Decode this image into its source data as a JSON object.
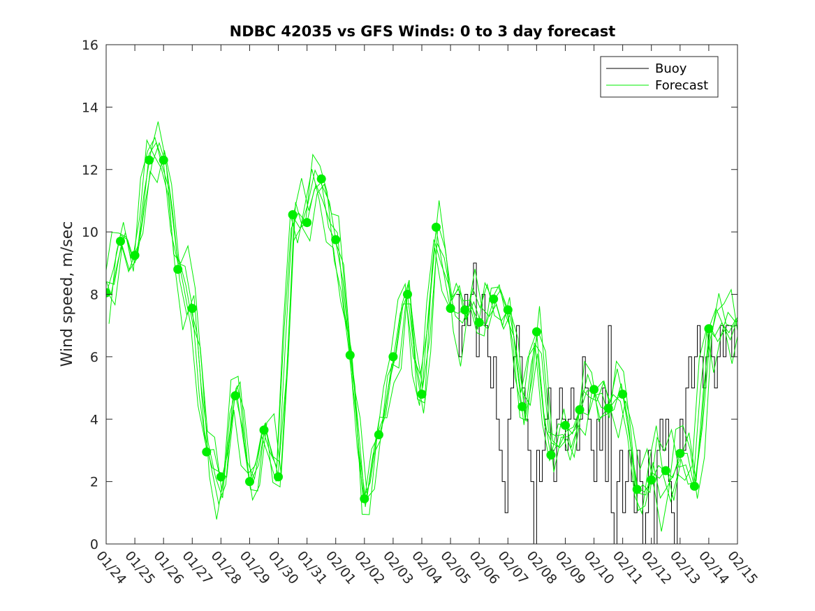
{
  "chart_data": {
    "type": "line",
    "title": "NDBC 42035 vs GFS Winds: 0 to 3 day forecast",
    "xlabel": "",
    "ylabel": "Wind speed, m/sec",
    "xlim": [
      "01/24",
      "02/15"
    ],
    "ylim": [
      0,
      16
    ],
    "y_ticks": [
      0,
      2,
      4,
      6,
      8,
      10,
      12,
      14,
      16
    ],
    "x_ticks": [
      "01/24",
      "01/25",
      "01/26",
      "01/27",
      "01/28",
      "01/29",
      "01/30",
      "01/31",
      "02/01",
      "02/02",
      "02/03",
      "02/04",
      "02/05",
      "02/06",
      "02/07",
      "02/08",
      "02/09",
      "02/10",
      "02/11",
      "02/12",
      "02/13",
      "02/14",
      "02/15"
    ],
    "grid": false,
    "legend": {
      "placement": "top-right",
      "entries": [
        "Buoy",
        "Forecast"
      ]
    },
    "colors": {
      "buoy": "#000000",
      "forecast": "#00ee00"
    },
    "series": [
      {
        "name": "Buoy",
        "note_days": "x in days after 01/24 00:00",
        "x": [
          12.2,
          12.3,
          12.4,
          12.5,
          12.6,
          12.7,
          12.8,
          12.9,
          13.0,
          13.1,
          13.2,
          13.3,
          13.4,
          13.5,
          13.6,
          13.7,
          13.8,
          13.9,
          14.0,
          14.1,
          14.2,
          14.3,
          14.4,
          14.5,
          14.6,
          14.7,
          14.8,
          14.9,
          15.0,
          15.1,
          15.2,
          15.3,
          15.4,
          15.5,
          15.6,
          15.7,
          15.8,
          15.9,
          16.0,
          16.1,
          16.2,
          16.3,
          16.4,
          16.5,
          16.6,
          16.7,
          16.8,
          16.9,
          17.0,
          17.1,
          17.2,
          17.3,
          17.4,
          17.5,
          17.6,
          17.7,
          17.8,
          17.9,
          18.0,
          18.1,
          18.2,
          18.3,
          18.4,
          18.5,
          18.6,
          18.7,
          18.8,
          18.9,
          19.0,
          19.1,
          19.2,
          19.3,
          19.4,
          19.5,
          19.6,
          19.7,
          19.8,
          19.9,
          20.0,
          20.1,
          20.2,
          20.3,
          20.4,
          20.5,
          20.6,
          20.7,
          20.8,
          20.9,
          21.0,
          21.1,
          21.2,
          21.3,
          21.4,
          21.5,
          21.6,
          21.7,
          21.8,
          21.9,
          22.0
        ],
        "y": [
          8,
          6,
          7,
          8,
          7,
          8,
          9,
          6,
          7,
          8,
          7,
          6,
          5,
          6,
          4,
          3,
          2,
          1,
          4,
          5,
          6,
          7,
          6,
          5,
          4,
          3,
          2,
          0,
          3,
          2,
          3,
          4,
          5,
          3,
          2,
          4,
          5,
          4,
          3,
          4,
          5,
          4,
          3,
          4,
          6,
          5,
          4,
          3,
          2,
          4,
          3,
          5,
          2,
          7,
          1,
          0,
          2,
          3,
          1,
          2,
          3,
          2,
          1,
          3,
          2,
          0,
          1,
          3,
          2,
          0,
          3,
          4,
          3,
          4,
          2,
          1,
          0,
          3,
          4,
          3,
          5,
          6,
          5,
          6,
          7,
          6,
          5,
          6,
          7,
          6,
          5,
          6,
          7,
          6,
          7,
          7,
          6,
          7,
          7
        ]
      },
      {
        "name": "Forecast",
        "note_days": "x in days after 01/24 00:00",
        "x": [
          0.0,
          0.5,
          1.0,
          1.5,
          2.0,
          2.5,
          3.0,
          3.5,
          4.0,
          4.5,
          5.0,
          5.5,
          6.0,
          6.5,
          7.0,
          7.5,
          8.0,
          8.5,
          9.0,
          9.5,
          10.0,
          10.5,
          11.0,
          11.5,
          12.0,
          12.5,
          13.0,
          13.5,
          14.0,
          14.5,
          15.0,
          15.5,
          16.0,
          16.5,
          17.0,
          17.5,
          18.0,
          18.5,
          19.0,
          19.5,
          20.0,
          20.5,
          21.0,
          21.5,
          22.0
        ],
        "y": [
          8.0,
          9.9,
          9.0,
          12.5,
          12.2,
          9.0,
          7.6,
          3.0,
          2.0,
          4.8,
          2.0,
          3.8,
          2.2,
          10.5,
          10.3,
          11.6,
          9.7,
          6.0,
          1.4,
          3.5,
          5.9,
          8.0,
          4.8,
          10.1,
          7.5,
          7.5,
          7.1,
          7.8,
          7.5,
          4.3,
          6.8,
          2.8,
          3.8,
          4.2,
          4.9,
          4.3,
          4.8,
          1.8,
          2.0,
          2.3,
          2.9,
          1.8,
          6.9,
          7.0,
          7.2
        ],
        "markers": [
          [
            0.0,
            8.05
          ],
          [
            0.5,
            9.7
          ],
          [
            1.0,
            9.25
          ],
          [
            1.5,
            12.3
          ],
          [
            2.0,
            12.3
          ],
          [
            2.5,
            8.8
          ],
          [
            3.0,
            7.55
          ],
          [
            3.5,
            2.95
          ],
          [
            4.0,
            2.15
          ],
          [
            4.5,
            4.75
          ],
          [
            5.0,
            2.0
          ],
          [
            5.5,
            3.65
          ],
          [
            6.0,
            2.15
          ],
          [
            6.5,
            10.55
          ],
          [
            7.0,
            10.3
          ],
          [
            7.5,
            11.7
          ],
          [
            8.0,
            9.75
          ],
          [
            8.5,
            6.05
          ],
          [
            9.0,
            1.45
          ],
          [
            9.5,
            3.5
          ],
          [
            10.0,
            6.0
          ],
          [
            10.5,
            8.0
          ],
          [
            11.0,
            4.8
          ],
          [
            11.5,
            10.15
          ],
          [
            12.0,
            7.55
          ],
          [
            12.5,
            7.5
          ],
          [
            13.0,
            7.1
          ],
          [
            13.5,
            7.85
          ],
          [
            14.0,
            7.5
          ],
          [
            14.5,
            4.4
          ],
          [
            15.0,
            6.8
          ],
          [
            15.5,
            2.85
          ],
          [
            16.0,
            3.8
          ],
          [
            16.5,
            4.3
          ],
          [
            17.0,
            4.95
          ],
          [
            17.5,
            4.35
          ],
          [
            18.0,
            4.8
          ],
          [
            18.5,
            1.75
          ],
          [
            19.0,
            2.05
          ],
          [
            19.5,
            2.35
          ],
          [
            20.0,
            2.9
          ],
          [
            20.5,
            1.85
          ],
          [
            21.0,
            6.9
          ]
        ]
      }
    ]
  }
}
